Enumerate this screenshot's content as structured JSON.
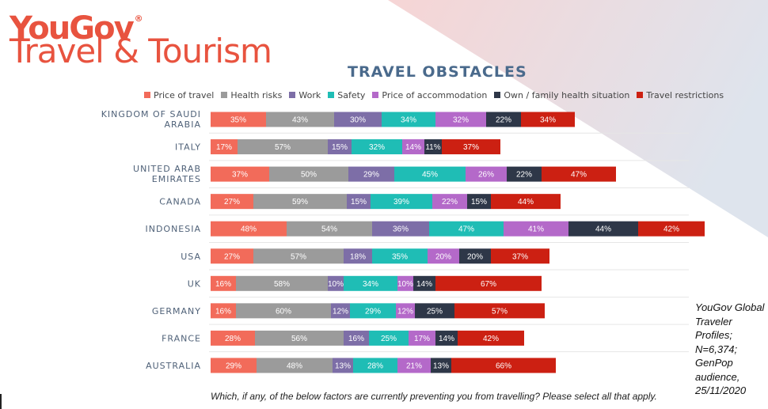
{
  "header": {
    "brand": "YouGov",
    "brand_mark": "®",
    "subtitle": "Travel & Tourism"
  },
  "colors": {
    "brand": "#e8533f",
    "title": "#4a6a8c",
    "category_label": "#4f6178",
    "label_dark_text": "#ffffff",
    "wedge_pink": "#f3c7c7",
    "wedge_blue": "#d3dbe7"
  },
  "chart_data": {
    "type": "bar",
    "orientation": "horizontal",
    "stacked": true,
    "title": "TRAVEL OBSTACLES",
    "legend_position": "top",
    "grid": false,
    "categories": [
      "KINGDOM OF SAUDI ARABIA",
      "ITALY",
      "UNITED ARAB EMIRATES",
      "CANADA",
      "INDONESIA",
      "USA",
      "UK",
      "GERMANY",
      "FRANCE",
      "AUSTRALIA"
    ],
    "series": [
      {
        "name": "Price of travel",
        "color": "#f26b5a",
        "values": [
          35,
          17,
          37,
          27,
          48,
          27,
          16,
          16,
          28,
          29
        ]
      },
      {
        "name": "Health risks",
        "color": "#9b9b9b",
        "values": [
          43,
          57,
          50,
          59,
          54,
          57,
          58,
          60,
          56,
          48
        ]
      },
      {
        "name": "Work",
        "color": "#7d6ea7",
        "values": [
          30,
          15,
          29,
          15,
          36,
          18,
          10,
          12,
          16,
          13
        ]
      },
      {
        "name": "Safety",
        "color": "#1fbdb5",
        "values": [
          34,
          32,
          45,
          39,
          47,
          35,
          34,
          29,
          25,
          28
        ]
      },
      {
        "name": "Price of accommodation",
        "color": "#b469c9",
        "values": [
          32,
          14,
          26,
          22,
          41,
          20,
          10,
          12,
          17,
          21
        ]
      },
      {
        "name": "Own / family health situation",
        "color": "#2e3748",
        "values": [
          22,
          11,
          22,
          15,
          44,
          20,
          14,
          25,
          14,
          13
        ]
      },
      {
        "name": "Travel restrictions",
        "color": "#cc2012",
        "values": [
          34,
          37,
          47,
          44,
          42,
          37,
          67,
          57,
          42,
          66
        ]
      }
    ]
  },
  "source_lines": [
    "YouGov Global",
    "Traveler",
    "Profiles;",
    "N=6,374;",
    "GenPop",
    "audience,",
    "25/11/2020"
  ],
  "question": "Which, if any, of the below factors are currently preventing you from travelling? Please select all that apply."
}
